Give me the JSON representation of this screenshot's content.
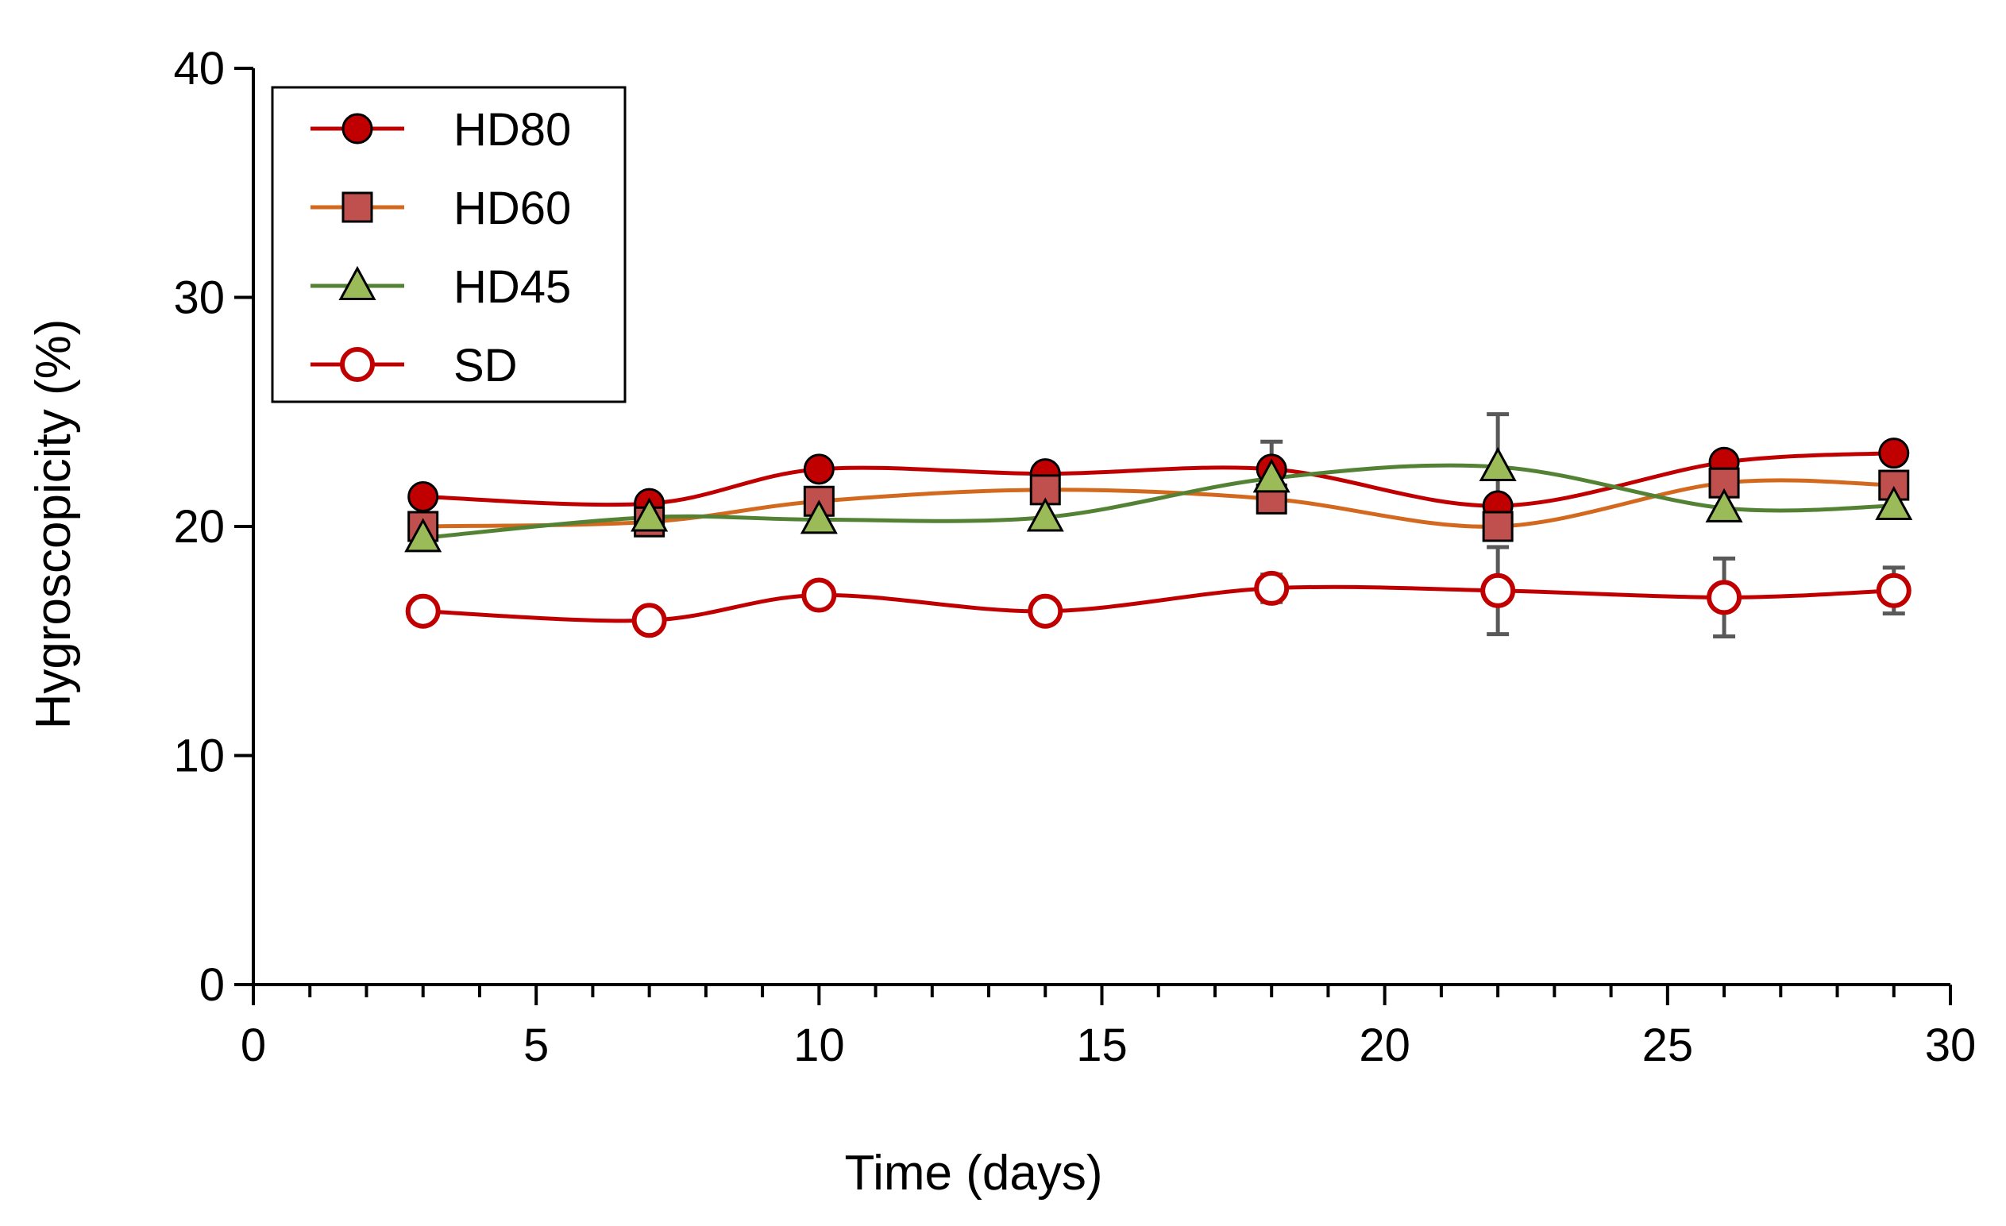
{
  "chart_data": {
    "type": "line",
    "title": "",
    "xlabel": "Time (days)",
    "ylabel": "Hygroscopicity (%)",
    "xlim": [
      0,
      30
    ],
    "ylim": [
      0,
      40
    ],
    "xticks": [
      0,
      5,
      10,
      15,
      20,
      25,
      30
    ],
    "yticks": [
      0,
      10,
      20,
      30,
      40
    ],
    "x_minor_step": 1,
    "legend_position": "top-left",
    "grid": false,
    "x": [
      3,
      7,
      10,
      14,
      18,
      22,
      26,
      29
    ],
    "series": [
      {
        "name": "HD80",
        "marker": "filled-circle",
        "line_color": "#C00000",
        "marker_fill": "#C00000",
        "values": [
          21.3,
          21.0,
          22.5,
          22.3,
          22.5,
          20.9,
          22.8,
          23.2
        ],
        "error": [
          0.3,
          0.3,
          0.3,
          0.3,
          1.2,
          0.4,
          0.3,
          0.3
        ]
      },
      {
        "name": "HD60",
        "marker": "filled-square",
        "line_color": "#D2691E",
        "marker_fill": "#C0504D",
        "values": [
          20.0,
          20.2,
          21.1,
          21.6,
          21.2,
          20.0,
          21.9,
          21.8
        ],
        "error": [
          0.3,
          0.3,
          0.3,
          0.3,
          0.3,
          0.3,
          0.3,
          0.3
        ]
      },
      {
        "name": "HD45",
        "marker": "filled-triangle",
        "line_color": "#548235",
        "marker_fill": "#9BBB59",
        "values": [
          19.5,
          20.4,
          20.3,
          20.4,
          22.1,
          22.6,
          20.8,
          20.9
        ],
        "error": [
          0.3,
          0.3,
          0.3,
          0.3,
          0.3,
          2.3,
          0.3,
          0.3
        ]
      },
      {
        "name": "SD",
        "marker": "open-circle",
        "line_color": "#C00000",
        "marker_fill": "#FFFFFF",
        "values": [
          16.3,
          15.9,
          17.0,
          16.3,
          17.3,
          17.2,
          16.9,
          17.2
        ],
        "error": [
          0.3,
          0.3,
          0.3,
          0.3,
          0.6,
          1.9,
          1.7,
          1.0
        ]
      }
    ]
  }
}
